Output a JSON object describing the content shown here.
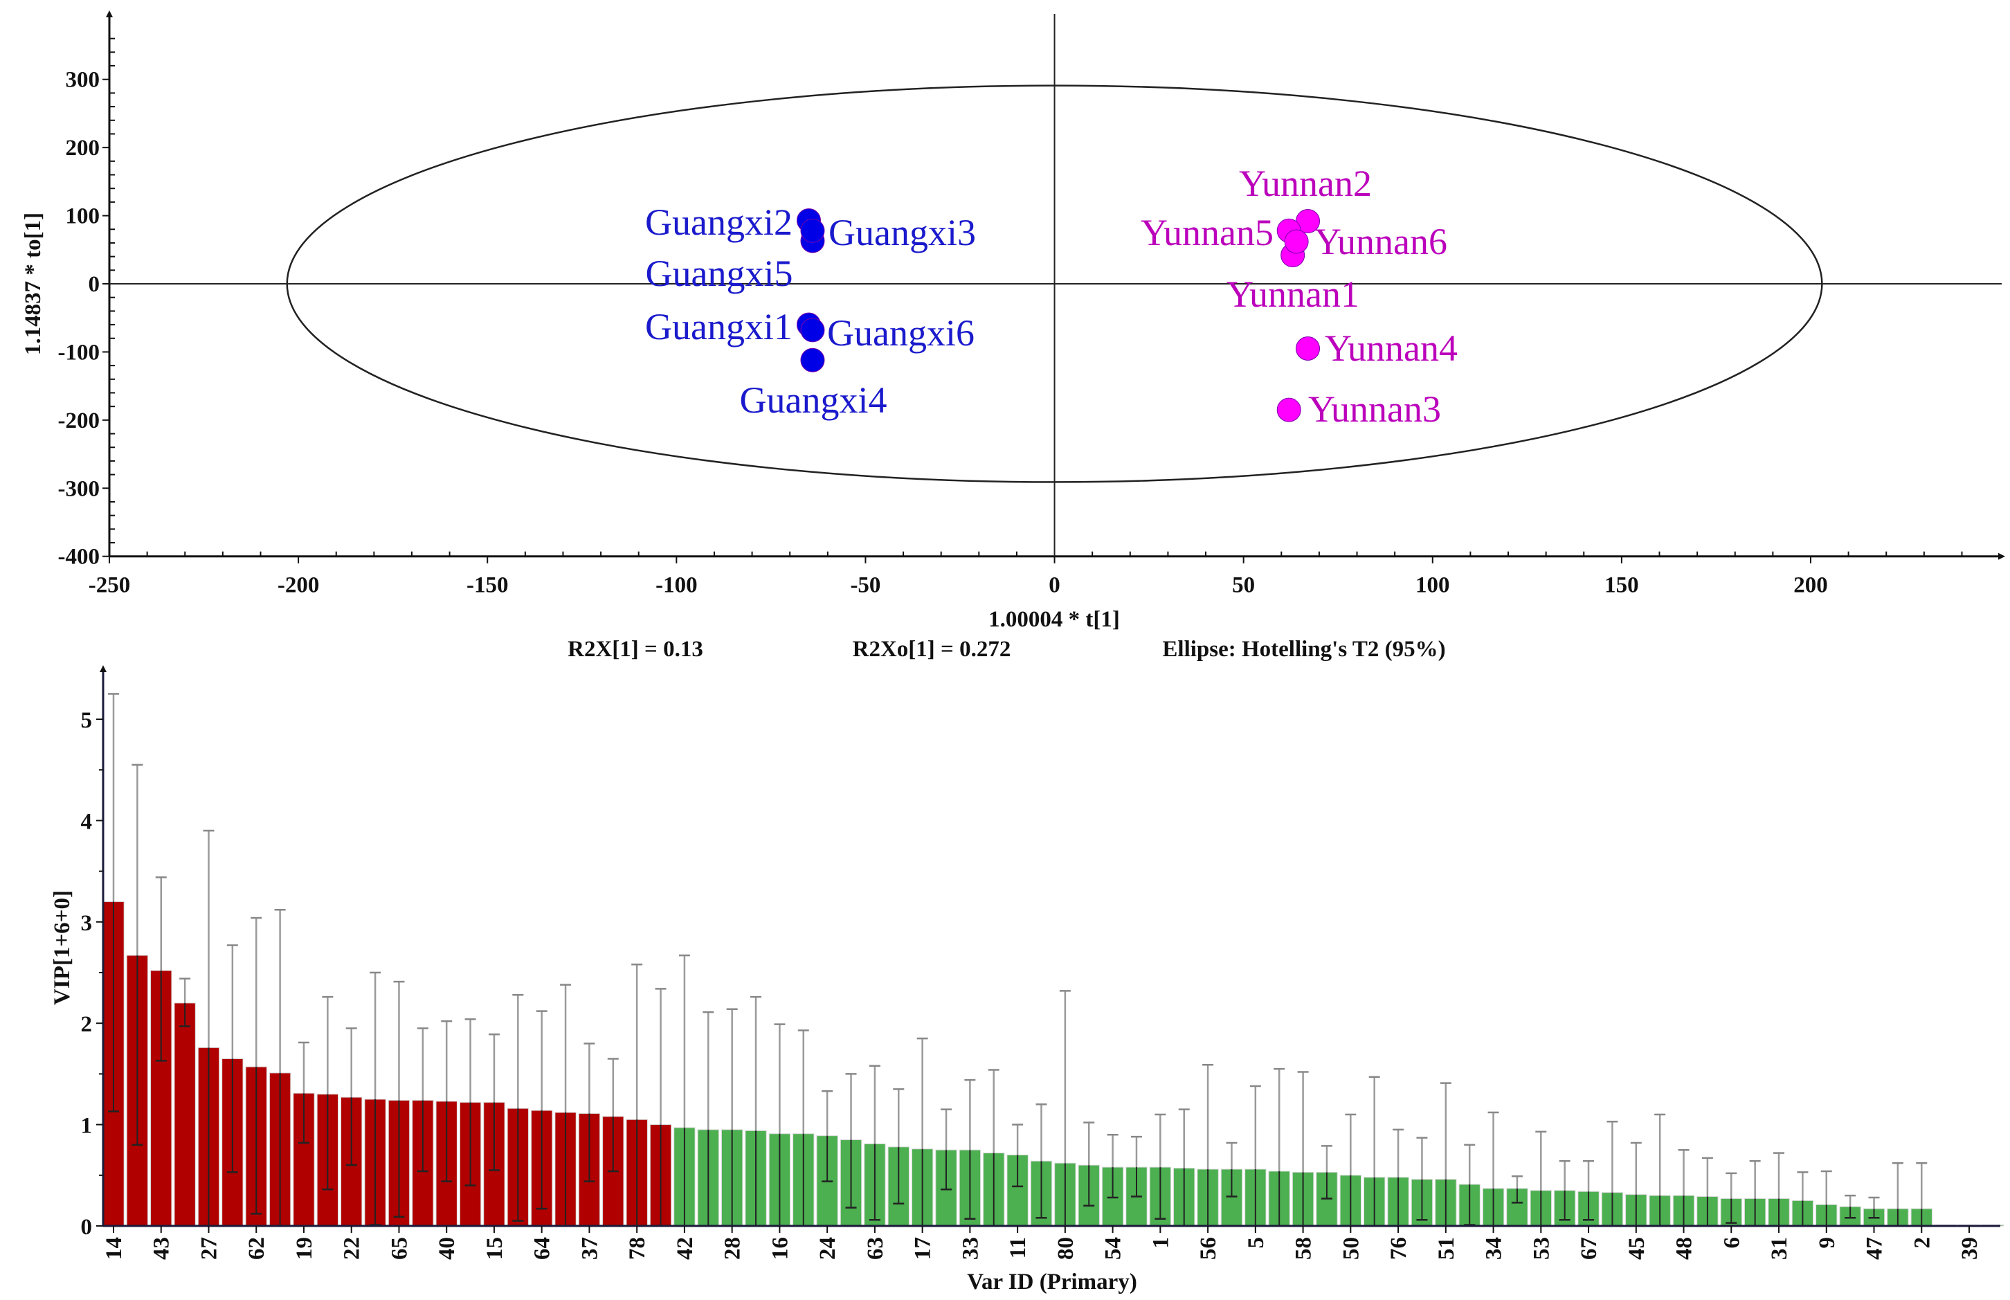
{
  "chart_data": [
    {
      "type": "scatter",
      "xlabel": "1.00004 * t[1]",
      "ylabel": "1.14837 * to[1]",
      "xlim": [
        -250,
        245
      ],
      "ylim": [
        -400,
        370
      ],
      "xticks": [
        -250,
        -200,
        -150,
        -100,
        -50,
        0,
        50,
        100,
        150,
        200
      ],
      "yticks": [
        300,
        200,
        100,
        0,
        -100,
        -200,
        -300,
        -400
      ],
      "stats": {
        "r2x": "R2X[1] = 0.13",
        "r2xo": "R2Xo[1] = 0.272",
        "ellipse": "Ellipse: Hotelling's T2 (95%)"
      },
      "ellipse": {
        "cx": 0,
        "cy": 0,
        "rx": 203,
        "ry": 291
      },
      "series": [
        {
          "name": "Guangxi",
          "color": "#0000e6",
          "label_color": "#1a1acc",
          "points": [
            {
              "label": "Guangxi1",
              "x": -65,
              "y": -60
            },
            {
              "label": "Guangxi2",
              "x": -65,
              "y": 93
            },
            {
              "label": "Guangxi3",
              "x": -64,
              "y": 63
            },
            {
              "label": "Guangxi4",
              "x": -64,
              "y": -112
            },
            {
              "label": "Guangxi5",
              "x": -64,
              "y": 78
            },
            {
              "label": "Guangxi6",
              "x": -64,
              "y": -68
            }
          ]
        },
        {
          "name": "Yunnan",
          "color": "#ff00ff",
          "label_color": "#bb00bb",
          "points": [
            {
              "label": "Yunnan1",
              "x": 63,
              "y": 42
            },
            {
              "label": "Yunnan2",
              "x": 67,
              "y": 92
            },
            {
              "label": "Yunnan3",
              "x": 62,
              "y": -185
            },
            {
              "label": "Yunnan4",
              "x": 67,
              "y": -95
            },
            {
              "label": "Yunnan5",
              "x": 62,
              "y": 78
            },
            {
              "label": "Yunnan6",
              "x": 64,
              "y": 62
            }
          ]
        }
      ]
    },
    {
      "type": "bar",
      "xlabel": "Var ID (Primary)",
      "ylabel": "VIP[1+6+0]",
      "ylim": [
        0,
        5.4
      ],
      "yticks": [
        0,
        1,
        2,
        3,
        4,
        5
      ],
      "threshold": 1,
      "colors": {
        "above": "#b00000",
        "below": "#4caf50"
      },
      "categories": [
        "14",
        "",
        "43",
        "",
        "27",
        "",
        "62",
        "",
        "19",
        "",
        "22",
        "",
        "65",
        "",
        "40",
        "",
        "15",
        "",
        "64",
        "",
        "37",
        "",
        "78",
        "",
        "42",
        "",
        "28",
        "",
        "16",
        "",
        "24",
        "",
        "63",
        "",
        "17",
        "",
        "33",
        "",
        "11",
        "",
        "80",
        "",
        "54",
        "",
        "1",
        "",
        "56",
        "",
        "5",
        "",
        "58",
        "",
        "50",
        "",
        "76",
        "",
        "51",
        "",
        "34",
        "",
        "53",
        "",
        "67",
        "",
        "45",
        "",
        "48",
        "",
        "6",
        "",
        "31",
        "",
        "9",
        "",
        "47",
        "",
        "2",
        "",
        "39",
        ""
      ],
      "values": [
        3.2,
        2.67,
        2.52,
        2.2,
        1.76,
        1.65,
        1.57,
        1.51,
        1.31,
        1.3,
        1.27,
        1.25,
        1.24,
        1.24,
        1.23,
        1.22,
        1.22,
        1.16,
        1.14,
        1.12,
        1.11,
        1.08,
        1.05,
        1.0,
        0.97,
        0.95,
        0.95,
        0.94,
        0.91,
        0.91,
        0.89,
        0.85,
        0.81,
        0.78,
        0.76,
        0.75,
        0.75,
        0.72,
        0.7,
        0.64,
        0.62,
        0.6,
        0.58,
        0.58,
        0.58,
        0.57,
        0.56,
        0.56,
        0.56,
        0.54,
        0.53,
        0.53,
        0.5,
        0.48,
        0.48,
        0.46,
        0.46,
        0.41,
        0.37,
        0.37,
        0.35,
        0.35,
        0.34,
        0.33,
        0.31,
        0.3,
        0.3,
        0.29,
        0.27,
        0.27,
        0.27,
        0.25,
        0.21,
        0.19,
        0.17,
        0.17,
        0.17,
        0.01,
        0.01,
        0.01
      ],
      "err_low": [
        1.13,
        0.8,
        1.63,
        1.97,
        0,
        0.53,
        0.12,
        0,
        0.82,
        0.36,
        0.6,
        0.01,
        0.09,
        0.54,
        0.44,
        0.4,
        0.55,
        0.05,
        0.17,
        0,
        0.44,
        0.54,
        0,
        0,
        0,
        0,
        0,
        0,
        0,
        0,
        0.44,
        0.18,
        0.06,
        0.22,
        0,
        0.36,
        0.07,
        0,
        0.39,
        0.08,
        0,
        0.2,
        0.28,
        0.29,
        0.07,
        0,
        0,
        0.29,
        0,
        0,
        0,
        0.27,
        0,
        0,
        0,
        0.06,
        0,
        0.01,
        0,
        0.23,
        0,
        0.06,
        0.06,
        0,
        0,
        0,
        0,
        0,
        0.03,
        0,
        0,
        0,
        0,
        0.08,
        0.08,
        0,
        0,
        0,
        0,
        0
      ],
      "err_high": [
        5.25,
        4.55,
        3.44,
        2.44,
        3.9,
        2.77,
        3.04,
        3.12,
        1.81,
        2.26,
        1.95,
        2.5,
        2.41,
        1.95,
        2.02,
        2.04,
        1.89,
        2.28,
        2.12,
        2.38,
        1.8,
        1.65,
        2.58,
        2.34,
        2.67,
        2.11,
        2.14,
        2.26,
        1.99,
        1.93,
        1.33,
        1.5,
        1.58,
        1.35,
        1.85,
        1.15,
        1.44,
        1.54,
        1.0,
        1.2,
        2.32,
        1.02,
        0.9,
        0.88,
        1.1,
        1.15,
        1.59,
        0.82,
        1.38,
        1.55,
        1.52,
        0.79,
        1.1,
        1.47,
        0.95,
        0.87,
        1.41,
        0.8,
        1.12,
        0.49,
        0.93,
        0.64,
        0.64,
        1.03,
        0.82,
        1.1,
        0.75,
        0.67,
        0.52,
        0.64,
        0.72,
        0.53,
        0.54,
        0.3,
        0.28,
        0.62,
        0.62,
        0.01,
        0.01,
        0.01
      ]
    }
  ]
}
